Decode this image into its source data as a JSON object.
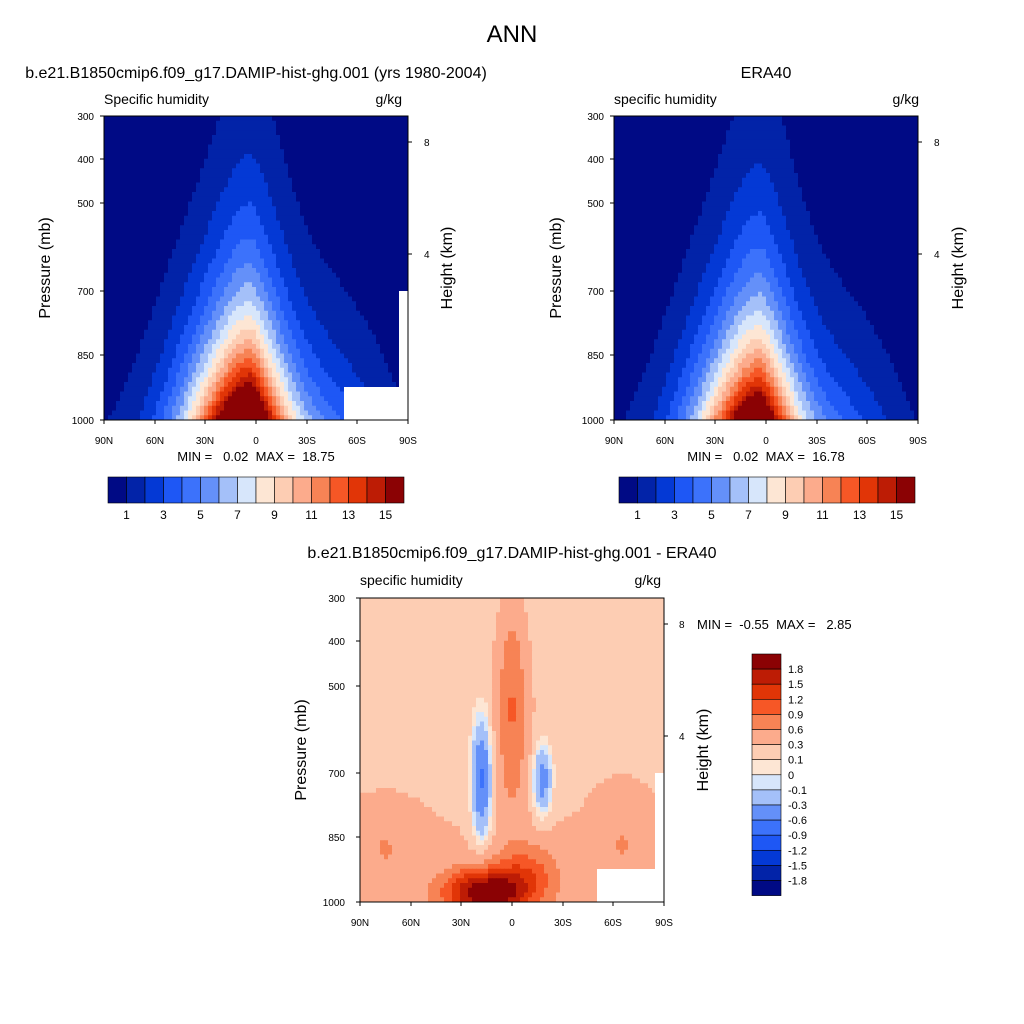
{
  "figure_title": "ANN",
  "colors": {
    "abs_palette": [
      "#000a85",
      "#0223a8",
      "#0439d5",
      "#1e57f5",
      "#3c72fb",
      "#6490f9",
      "#a4c0f9",
      "#d7e6fb",
      "#fde6d4",
      "#fdcdb3",
      "#fcab8c",
      "#f78355",
      "#f65726",
      "#e13507",
      "#bd1c05",
      "#8b0204"
    ],
    "diff_palette": [
      "#000a85",
      "#0223a8",
      "#0439d5",
      "#1e57f5",
      "#3c72fb",
      "#6490f9",
      "#a4c0f9",
      "#d7e6fb",
      "#fde6d4",
      "#fdcdb3",
      "#fcab8c",
      "#f78355",
      "#f65726",
      "#e13507",
      "#bd1c05",
      "#8b0204"
    ]
  },
  "chart_data": [
    {
      "type": "heatmap",
      "title": "b.e21.B1850cmip6.f09_g17.DAMIP-hist-ghg.001 (yrs 1980-2004)",
      "left_label": "Specific humidity",
      "right_label": "g/kg",
      "ylabel": "Pressure (mb)",
      "y2label": "Height (km)",
      "xticks": [
        "90N",
        "60N",
        "30N",
        "0",
        "30S",
        "60S",
        "90S"
      ],
      "yticks": [
        "300",
        "400",
        "500",
        "700",
        "850",
        "1000"
      ],
      "y2ticks": [
        "8",
        "4"
      ],
      "stats": "MIN =   0.02  MAX =  18.75",
      "min": 0.02,
      "max": 18.75,
      "colorbar_labels": [
        "1",
        "3",
        "5",
        "7",
        "9",
        "11",
        "13",
        "15"
      ],
      "colorbar_levels": [
        1,
        2,
        3,
        4,
        5,
        6,
        7,
        8,
        9,
        10,
        11,
        12,
        13,
        14,
        15
      ],
      "missing_region": "high-latitude south near surface"
    },
    {
      "type": "heatmap",
      "title": "ERA40",
      "left_label": "specific humidity",
      "right_label": "g/kg",
      "ylabel": "Pressure (mb)",
      "y2label": "Height (km)",
      "xticks": [
        "90N",
        "60N",
        "30N",
        "0",
        "30S",
        "60S",
        "90S"
      ],
      "yticks": [
        "300",
        "400",
        "500",
        "700",
        "850",
        "1000"
      ],
      "y2ticks": [
        "8",
        "4"
      ],
      "stats": "MIN =   0.02  MAX =  16.78",
      "min": 0.02,
      "max": 16.78,
      "colorbar_labels": [
        "1",
        "3",
        "5",
        "7",
        "9",
        "11",
        "13",
        "15"
      ],
      "colorbar_levels": [
        1,
        2,
        3,
        4,
        5,
        6,
        7,
        8,
        9,
        10,
        11,
        12,
        13,
        14,
        15
      ]
    },
    {
      "type": "heatmap",
      "title": "b.e21.B1850cmip6.f09_g17.DAMIP-hist-ghg.001 - ERA40",
      "left_label": "specific humidity",
      "right_label": "g/kg",
      "ylabel": "Pressure (mb)",
      "y2label": "Height (km)",
      "xticks": [
        "90N",
        "60N",
        "30N",
        "0",
        "30S",
        "60S",
        "90S"
      ],
      "yticks": [
        "300",
        "400",
        "500",
        "700",
        "850",
        "1000"
      ],
      "y2ticks": [
        "8",
        "4"
      ],
      "stats": "MIN =  -0.55  MAX =   2.85",
      "min": -0.55,
      "max": 2.85,
      "colorbar_labels": [
        "1.8",
        "1.5",
        "1.2",
        "0.9",
        "0.6",
        "0.3",
        "0.1",
        "0",
        "-0.1",
        "-0.3",
        "-0.6",
        "-0.9",
        "-1.2",
        "-1.5",
        "-1.8"
      ],
      "colorbar_levels": [
        -1.8,
        -1.5,
        -1.2,
        -0.9,
        -0.6,
        -0.3,
        -0.1,
        0,
        0.1,
        0.3,
        0.6,
        0.9,
        1.2,
        1.5,
        1.8
      ]
    }
  ]
}
